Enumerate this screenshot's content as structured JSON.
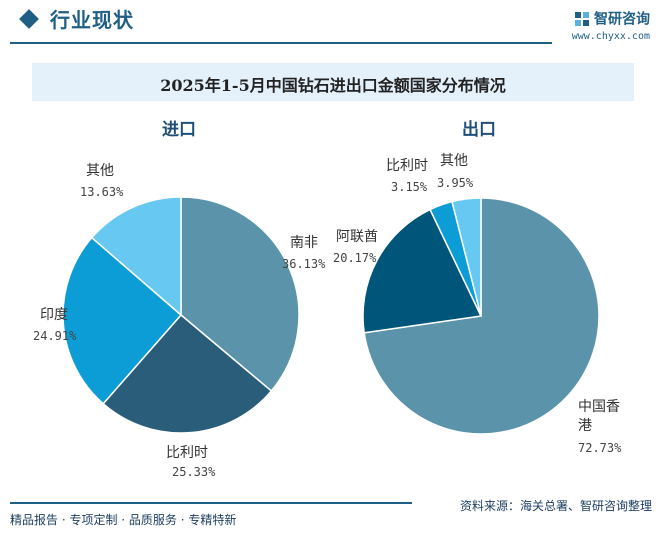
{
  "header": {
    "section_title": "行业现状",
    "logo_name": "智研咨询",
    "logo_url": "www.chyxx.com"
  },
  "chart_data": [
    {
      "type": "pie",
      "title": "进口",
      "slices": [
        {
          "name": "南非",
          "value": 36.13,
          "label": "36.13%",
          "color": "#5b93ab"
        },
        {
          "name": "比利时",
          "value": 25.33,
          "label": "25.33%",
          "color": "#2a5d7a"
        },
        {
          "name": "印度",
          "value": 24.91,
          "label": "24.91%",
          "color": "#0d9dd6"
        },
        {
          "name": "其他",
          "value": 13.63,
          "label": "13.63%",
          "color": "#67c9f2"
        }
      ]
    },
    {
      "type": "pie",
      "title": "出口",
      "slices": [
        {
          "name": "中国香港",
          "value": 72.73,
          "label": "72.73%",
          "color": "#5b93ab"
        },
        {
          "name": "阿联酋",
          "value": 20.17,
          "label": "20.17%",
          "color": "#00557a"
        },
        {
          "name": "比利时",
          "value": 3.15,
          "label": "3.15%",
          "color": "#0d9dd6"
        },
        {
          "name": "其他",
          "value": 3.95,
          "label": "3.95%",
          "color": "#67c9f2"
        }
      ]
    }
  ],
  "figure_title": "2025年1-5月中国钻石进出口金额国家分布情况",
  "footer": {
    "left": "精品报告 · 专项定制 · 品质服务 · 专精特新",
    "source": "资料来源：海关总署、智研咨询整理"
  }
}
